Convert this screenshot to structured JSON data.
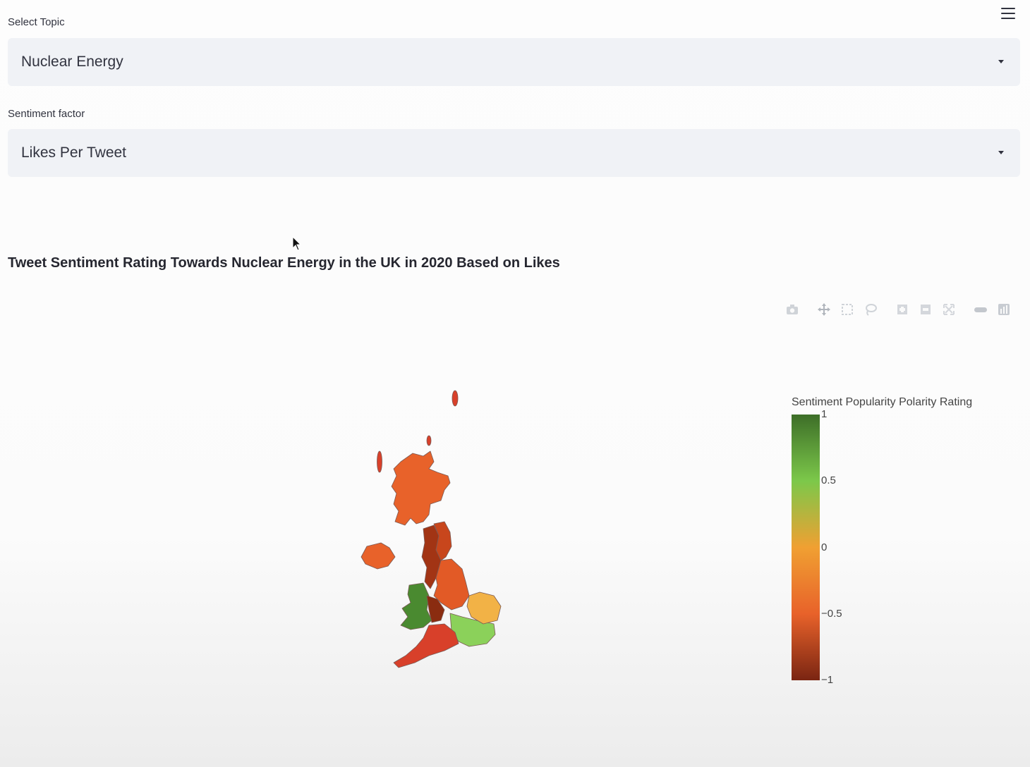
{
  "header": {
    "menu_icon": "hamburger-menu-icon"
  },
  "topic_select": {
    "label": "Select Topic",
    "value": "Nuclear Energy"
  },
  "sentiment_select": {
    "label": "Sentiment factor",
    "value": "Likes Per Tweet"
  },
  "chart": {
    "title": "Tweet Sentiment Rating Towards Nuclear Energy in the UK in 2020 Based on Likes",
    "modebar_icons": [
      "camera-icon",
      "pan-icon",
      "box-select-icon",
      "lasso-select-icon",
      "zoom-in-icon",
      "zoom-out-icon",
      "autoscale-icon",
      "reset-view-icon",
      "plotly-logo-icon"
    ]
  },
  "chart_data": {
    "type": "choropleth",
    "colorbar": {
      "title": "Sentiment Popularity Polarity Rating",
      "range": [
        -1,
        1
      ],
      "ticks": [
        "1",
        "0.5",
        "0",
        "−0.5",
        "−1"
      ],
      "colors": [
        "#3d6e28",
        "#7cc84a",
        "#f0a032",
        "#e8622a",
        "#7a2512"
      ]
    },
    "regions": [
      {
        "value": -0.55,
        "color": "#e8622a"
      },
      {
        "value": -0.9,
        "color": "#8a2c10"
      },
      {
        "value": -0.7,
        "color": "#c8461c"
      },
      {
        "value": -0.6,
        "color": "#e25a26"
      },
      {
        "value": 0.8,
        "color": "#4a8a30"
      },
      {
        "value": 0.55,
        "color": "#8bd15a"
      },
      {
        "value": 0.1,
        "color": "#f2b246"
      },
      {
        "value": -0.85,
        "color": "#a23414"
      },
      {
        "value": -0.4,
        "color": "#d8402a"
      }
    ]
  }
}
